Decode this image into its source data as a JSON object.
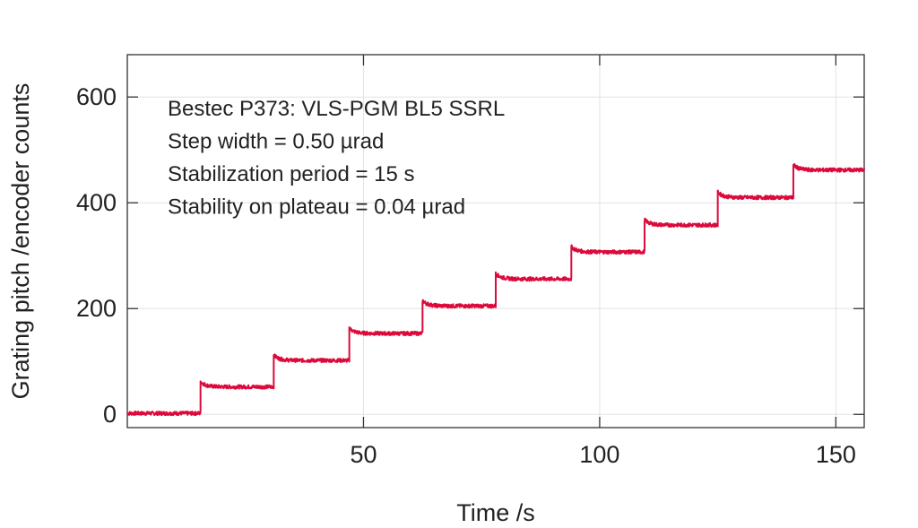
{
  "chart_data": {
    "type": "line",
    "xlabel": "Time /s",
    "ylabel": "Grating pitch /encoder counts",
    "xlim": [
      0,
      156
    ],
    "ylim": [
      -25,
      680
    ],
    "xticks": [
      50,
      100,
      150
    ],
    "yticks": [
      0,
      200,
      400,
      600
    ],
    "grid": true,
    "line_color": "#dc0a3c",
    "annotations": [
      "Bestec P373: VLS-PGM BL5 SSRL",
      "Step width = 0.50 µrad",
      "Stabilization period = 15 s",
      "Stability on plateau = 0.04 µrad"
    ],
    "series": [
      {
        "plateaus": [
          {
            "t_start": 0,
            "t_end": 15.5,
            "value": 2
          },
          {
            "t_start": 15.5,
            "t_end": 31,
            "value": 52
          },
          {
            "t_start": 31,
            "t_end": 47,
            "value": 102
          },
          {
            "t_start": 47,
            "t_end": 62.5,
            "value": 153
          },
          {
            "t_start": 62.5,
            "t_end": 78,
            "value": 205
          },
          {
            "t_start": 78,
            "t_end": 94,
            "value": 256
          },
          {
            "t_start": 94,
            "t_end": 109.5,
            "value": 307
          },
          {
            "t_start": 109.5,
            "t_end": 125,
            "value": 358
          },
          {
            "t_start": 125,
            "t_end": 141,
            "value": 410
          },
          {
            "t_start": 141,
            "t_end": 156,
            "value": 462
          }
        ]
      }
    ]
  }
}
